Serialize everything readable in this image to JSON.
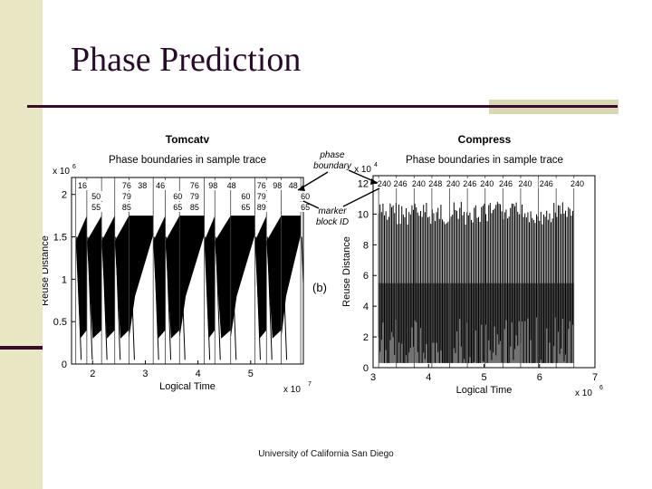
{
  "slide": {
    "title": "Phase Prediction",
    "footer": "University of California San Diego"
  },
  "figure": {
    "annotations": {
      "phase_boundary": [
        "phase",
        "boundary"
      ],
      "marker_block_id": [
        "marker",
        "block ID"
      ],
      "panel_label": "(b)"
    }
  },
  "chart_data": [
    {
      "type": "line",
      "title": "Tomcatv",
      "subtitle": "Phase boundaries in sample trace",
      "xlabel": "Logical Time",
      "ylabel": "Reuse Distance",
      "x_exponent": "x 10",
      "x_exponent_power": "7",
      "y_exponent": "x 10",
      "y_exponent_power": "6",
      "xlim": [
        1.6,
        6.0
      ],
      "ylim": [
        0,
        2.2
      ],
      "xticks": [
        "2",
        "3",
        "4",
        "5"
      ],
      "xtick_values": [
        2,
        3,
        4,
        5
      ],
      "yticks": [
        "0",
        "0.5",
        "1",
        "1.5",
        "2"
      ],
      "ytick_values": [
        0,
        0.5,
        1,
        1.5,
        2
      ],
      "phase_boundaries": [
        1.68,
        1.89,
        2.17,
        2.42,
        2.69,
        3.15,
        3.38,
        3.65,
        4.12,
        4.32,
        4.62,
        5.08,
        5.3,
        5.58,
        5.95
      ],
      "marker_labels": [
        {
          "x": 1.72,
          "rows": [
            "16",
            "",
            ""
          ]
        },
        {
          "x": 1.98,
          "rows": [
            "",
            "50",
            "55"
          ]
        },
        {
          "x": 2.56,
          "rows": [
            "76",
            "79",
            "85"
          ]
        },
        {
          "x": 2.86,
          "rows": [
            "38",
            "",
            ""
          ]
        },
        {
          "x": 3.2,
          "rows": [
            "46",
            "",
            ""
          ]
        },
        {
          "x": 3.53,
          "rows": [
            "",
            "60",
            "65"
          ]
        },
        {
          "x": 3.85,
          "rows": [
            "76",
            "79",
            "85"
          ]
        },
        {
          "x": 4.2,
          "rows": [
            "98",
            "",
            ""
          ]
        },
        {
          "x": 4.55,
          "rows": [
            "48",
            "",
            ""
          ]
        },
        {
          "x": 4.82,
          "rows": [
            "",
            "60",
            "65"
          ]
        },
        {
          "x": 5.12,
          "rows": [
            "76",
            "79",
            "89"
          ]
        },
        {
          "x": 5.42,
          "rows": [
            "98",
            "",
            ""
          ]
        },
        {
          "x": 5.72,
          "rows": [
            "48",
            "",
            ""
          ]
        },
        {
          "x": 5.95,
          "rows": [
            "",
            "60",
            "65"
          ]
        }
      ],
      "pattern": {
        "band_low": 1.5,
        "band_high": 1.75,
        "spike_min": 0.3
      }
    },
    {
      "type": "line",
      "title": "Compress",
      "subtitle": "Phase boundaries in sample trace",
      "xlabel": "Logical Time",
      "ylabel": "Reuse Distance",
      "x_exponent": "x 10",
      "x_exponent_power": "6",
      "y_exponent": "x 10",
      "y_exponent_power": "4",
      "xlim": [
        3,
        7
      ],
      "ylim": [
        0,
        12.5
      ],
      "xticks": [
        "3",
        "4",
        "5",
        "6",
        "7"
      ],
      "xtick_values": [
        3,
        4,
        5,
        6,
        7
      ],
      "yticks": [
        "0",
        "2",
        "4",
        "6",
        "8",
        "10",
        "12"
      ],
      "ytick_values": [
        0,
        2,
        4,
        6,
        8,
        10,
        12
      ],
      "phase_boundaries": [
        3.1,
        3.42,
        3.74,
        4.06,
        4.38,
        4.7,
        5.02,
        5.34,
        5.66,
        5.98,
        6.3,
        6.62
      ],
      "marker_labels": [
        {
          "x": 3.08,
          "rows": [
            "240"
          ]
        },
        {
          "x": 3.37,
          "rows": [
            "246"
          ]
        },
        {
          "x": 3.7,
          "rows": [
            "240"
          ]
        },
        {
          "x": 4.0,
          "rows": [
            "248"
          ]
        },
        {
          "x": 4.32,
          "rows": [
            "240"
          ]
        },
        {
          "x": 4.62,
          "rows": [
            "246"
          ]
        },
        {
          "x": 4.93,
          "rows": [
            "240"
          ]
        },
        {
          "x": 5.27,
          "rows": [
            "246"
          ]
        },
        {
          "x": 5.62,
          "rows": [
            "240"
          ]
        },
        {
          "x": 6.0,
          "rows": [
            "246"
          ]
        },
        {
          "x": 6.56,
          "rows": [
            "240"
          ]
        }
      ],
      "pattern": {
        "top": 10.8,
        "bottom": 0.3,
        "dense_bottom": 5.5
      }
    }
  ]
}
